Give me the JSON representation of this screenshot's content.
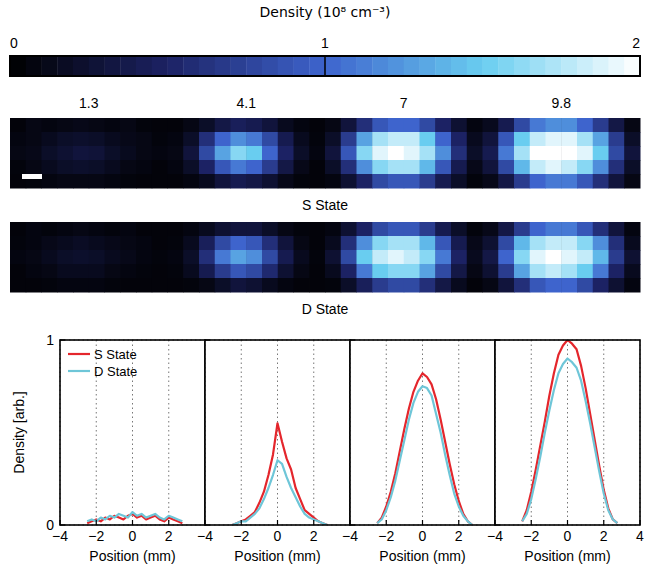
{
  "chart_data": [
    {
      "type": "heatmap",
      "colorbar": {
        "title": "Density (10⁸ cm⁻³)",
        "range": [
          0,
          2
        ],
        "ticks": [
          0,
          1,
          2
        ]
      },
      "columns": [
        "1.3",
        "4.1",
        "7",
        "9.8"
      ],
      "rows": [
        {
          "label": "S State",
          "images": [
            [
              [
                0.05,
                0.1,
                0.08,
                0.1,
                0.12,
                0.1,
                0.08,
                0.1,
                0.06,
                0.05
              ],
              [
                0.08,
                0.1,
                0.15,
                0.2,
                0.22,
                0.2,
                0.15,
                0.12,
                0.1,
                0.06
              ],
              [
                0.1,
                0.12,
                0.2,
                0.25,
                0.3,
                0.28,
                0.2,
                0.15,
                0.1,
                0.08
              ],
              [
                0.06,
                0.1,
                0.15,
                0.2,
                0.22,
                0.2,
                0.15,
                0.1,
                0.08,
                0.05
              ],
              [
                0.05,
                0.06,
                0.08,
                0.1,
                0.1,
                0.1,
                0.08,
                0.06,
                0.05,
                0.05
              ]
            ],
            [
              [
                0.05,
                0.1,
                0.2,
                0.35,
                0.45,
                0.4,
                0.3,
                0.15,
                0.08,
                0.05
              ],
              [
                0.08,
                0.2,
                0.6,
                1.0,
                1.2,
                1.1,
                0.8,
                0.4,
                0.15,
                0.06
              ],
              [
                0.1,
                0.3,
                0.8,
                1.3,
                1.6,
                1.5,
                1.0,
                0.5,
                0.2,
                0.08
              ],
              [
                0.08,
                0.2,
                0.5,
                0.9,
                1.1,
                1.0,
                0.7,
                0.35,
                0.12,
                0.05
              ],
              [
                0.05,
                0.08,
                0.15,
                0.3,
                0.4,
                0.35,
                0.25,
                0.12,
                0.06,
                0.05
              ]
            ],
            [
              [
                0.1,
                0.3,
                0.6,
                0.9,
                1.0,
                1.0,
                0.8,
                0.5,
                0.25,
                0.08
              ],
              [
                0.2,
                0.7,
                1.3,
                1.7,
                1.8,
                1.8,
                1.5,
                1.0,
                0.5,
                0.15
              ],
              [
                0.3,
                0.9,
                1.6,
                1.9,
                2.0,
                1.9,
                1.7,
                1.2,
                0.6,
                0.2
              ],
              [
                0.2,
                0.6,
                1.2,
                1.6,
                1.7,
                1.7,
                1.4,
                0.9,
                0.4,
                0.12
              ],
              [
                0.08,
                0.25,
                0.5,
                0.8,
                0.9,
                0.9,
                0.7,
                0.4,
                0.2,
                0.06
              ]
            ],
            [
              [
                0.15,
                0.4,
                0.8,
                1.1,
                1.2,
                1.2,
                1.0,
                0.7,
                0.35,
                0.1
              ],
              [
                0.3,
                0.9,
                1.5,
                1.8,
                1.9,
                1.9,
                1.7,
                1.3,
                0.7,
                0.2
              ],
              [
                0.4,
                1.1,
                1.7,
                2.0,
                2.0,
                2.0,
                1.9,
                1.5,
                0.8,
                0.3
              ],
              [
                0.3,
                0.8,
                1.4,
                1.8,
                1.9,
                1.8,
                1.6,
                1.2,
                0.6,
                0.2
              ],
              [
                0.12,
                0.35,
                0.7,
                1.0,
                1.1,
                1.1,
                0.9,
                0.6,
                0.3,
                0.1
              ]
            ]
          ]
        },
        {
          "label": "D State",
          "images": [
            [
              [
                0.05,
                0.08,
                0.06,
                0.08,
                0.1,
                0.08,
                0.06,
                0.08,
                0.05,
                0.05
              ],
              [
                0.06,
                0.08,
                0.12,
                0.15,
                0.18,
                0.15,
                0.12,
                0.1,
                0.08,
                0.05
              ],
              [
                0.08,
                0.1,
                0.15,
                0.2,
                0.22,
                0.2,
                0.15,
                0.12,
                0.08,
                0.06
              ],
              [
                0.05,
                0.08,
                0.1,
                0.15,
                0.15,
                0.15,
                0.1,
                0.08,
                0.06,
                0.05
              ],
              [
                0.05,
                0.05,
                0.06,
                0.08,
                0.08,
                0.08,
                0.06,
                0.05,
                0.05,
                0.05
              ]
            ],
            [
              [
                0.05,
                0.08,
                0.15,
                0.25,
                0.3,
                0.3,
                0.2,
                0.1,
                0.06,
                0.05
              ],
              [
                0.06,
                0.15,
                0.45,
                0.8,
                1.0,
                0.9,
                0.6,
                0.3,
                0.1,
                0.05
              ],
              [
                0.08,
                0.2,
                0.6,
                1.1,
                1.3,
                1.2,
                0.8,
                0.4,
                0.15,
                0.06
              ],
              [
                0.06,
                0.15,
                0.4,
                0.7,
                0.9,
                0.8,
                0.55,
                0.25,
                0.1,
                0.05
              ],
              [
                0.05,
                0.06,
                0.1,
                0.2,
                0.3,
                0.25,
                0.15,
                0.08,
                0.05,
                0.05
              ]
            ],
            [
              [
                0.08,
                0.25,
                0.5,
                0.8,
                0.9,
                0.9,
                0.7,
                0.4,
                0.2,
                0.06
              ],
              [
                0.15,
                0.6,
                1.2,
                1.6,
                1.7,
                1.7,
                1.4,
                0.9,
                0.4,
                0.12
              ],
              [
                0.25,
                0.8,
                1.5,
                1.8,
                1.9,
                1.8,
                1.6,
                1.1,
                0.5,
                0.15
              ],
              [
                0.15,
                0.5,
                1.1,
                1.5,
                1.6,
                1.6,
                1.3,
                0.8,
                0.35,
                0.1
              ],
              [
                0.06,
                0.2,
                0.45,
                0.7,
                0.8,
                0.8,
                0.6,
                0.35,
                0.15,
                0.05
              ]
            ],
            [
              [
                0.12,
                0.35,
                0.7,
                1.0,
                1.1,
                1.1,
                0.9,
                0.6,
                0.3,
                0.08
              ],
              [
                0.25,
                0.8,
                1.4,
                1.7,
                1.8,
                1.8,
                1.6,
                1.2,
                0.6,
                0.15
              ],
              [
                0.35,
                1.0,
                1.6,
                1.9,
                2.0,
                1.9,
                1.8,
                1.4,
                0.7,
                0.25
              ],
              [
                0.25,
                0.7,
                1.3,
                1.7,
                1.8,
                1.7,
                1.5,
                1.1,
                0.5,
                0.15
              ],
              [
                0.1,
                0.3,
                0.6,
                0.9,
                1.0,
                1.0,
                0.8,
                0.5,
                0.25,
                0.08
              ]
            ]
          ]
        }
      ]
    },
    {
      "type": "line",
      "ylabel": "Density [arb.]",
      "x": [
        -2.5,
        -2.25,
        -2,
        -1.75,
        -1.5,
        -1.25,
        -1,
        -0.75,
        -0.5,
        -0.25,
        0,
        0.25,
        0.5,
        0.75,
        1,
        1.25,
        1.5,
        1.75,
        2,
        2.25,
        2.5,
        2.75
      ],
      "panels": [
        {
          "xlabel": "Position (mm)",
          "xlim": [
            -4,
            4
          ],
          "xticks": [
            {
              "value": -4,
              "label": "−4"
            },
            {
              "value": -2,
              "label": "−2"
            },
            0,
            2
          ],
          "ylim": [
            0,
            1
          ],
          "yticks": [
            0,
            1
          ],
          "tick_labels": true,
          "grid": true,
          "legend": "upper left",
          "series": [
            {
              "name": "S State",
              "color": "#e4262c",
              "values": [
                0.01,
                0.02,
                0.03,
                0.02,
                0.04,
                0.03,
                0.05,
                0.04,
                0.03,
                0.05,
                0.06,
                0.04,
                0.05,
                0.03,
                0.04,
                0.05,
                0.03,
                0.02,
                0.04,
                0.03,
                0.02,
                0.01
              ]
            },
            {
              "name": "D State",
              "color": "#6ec6d8",
              "values": [
                0.02,
                0.03,
                0.02,
                0.04,
                0.03,
                0.05,
                0.04,
                0.06,
                0.05,
                0.04,
                0.07,
                0.05,
                0.06,
                0.04,
                0.05,
                0.06,
                0.04,
                0.03,
                0.05,
                0.04,
                0.03,
                0.02
              ]
            }
          ]
        },
        {
          "xlabel": "Position (mm)",
          "xlim": [
            -4,
            4
          ],
          "xticks": [
            {
              "value": -4,
              "label": "−4"
            },
            {
              "value": -2,
              "label": "−2"
            },
            0,
            2
          ],
          "ylim": [
            0,
            1
          ],
          "yticks": [
            0,
            1
          ],
          "tick_labels": "x",
          "grid": true,
          "series": [
            {
              "name": "S State",
              "color": "#e4262c",
              "values": [
                0.0,
                0.01,
                0.02,
                0.03,
                0.05,
                0.07,
                0.12,
                0.18,
                0.27,
                0.38,
                0.55,
                0.45,
                0.36,
                0.3,
                0.2,
                0.14,
                0.08,
                0.06,
                0.04,
                0.02,
                0.01,
                0.0
              ]
            },
            {
              "name": "D State",
              "color": "#6ec6d8",
              "values": [
                0.0,
                0.01,
                0.02,
                0.02,
                0.04,
                0.06,
                0.09,
                0.14,
                0.2,
                0.27,
                0.35,
                0.33,
                0.26,
                0.2,
                0.15,
                0.1,
                0.06,
                0.04,
                0.03,
                0.02,
                0.01,
                0.0
              ]
            }
          ]
        },
        {
          "xlabel": "Position (mm)",
          "xlim": [
            -4,
            4
          ],
          "xticks": [
            {
              "value": -4,
              "label": "−4"
            },
            {
              "value": -2,
              "label": "−2"
            },
            0,
            2
          ],
          "ylim": [
            0,
            1
          ],
          "yticks": [
            0,
            1
          ],
          "tick_labels": "x",
          "grid": true,
          "series": [
            {
              "name": "S State",
              "color": "#e4262c",
              "values": [
                0.01,
                0.04,
                0.1,
                0.18,
                0.28,
                0.4,
                0.52,
                0.63,
                0.72,
                0.78,
                0.82,
                0.8,
                0.76,
                0.68,
                0.57,
                0.45,
                0.33,
                0.22,
                0.13,
                0.06,
                0.02,
                0.0
              ]
            },
            {
              "name": "D State",
              "color": "#6ec6d8",
              "values": [
                0.01,
                0.03,
                0.08,
                0.15,
                0.24,
                0.35,
                0.46,
                0.57,
                0.66,
                0.72,
                0.75,
                0.74,
                0.7,
                0.6,
                0.5,
                0.38,
                0.27,
                0.17,
                0.1,
                0.05,
                0.02,
                0.0
              ]
            }
          ]
        },
        {
          "xlabel": "Position (mm)",
          "xlim": [
            -4,
            4
          ],
          "xticks": [
            {
              "value": -4,
              "label": "−4"
            },
            {
              "value": -2,
              "label": "−2"
            },
            0,
            2,
            4
          ],
          "ylim": [
            0,
            1
          ],
          "yticks": [
            0,
            1
          ],
          "tick_labels": "x",
          "grid": true,
          "series": [
            {
              "name": "S State",
              "color": "#e4262c",
              "values": [
                0.02,
                0.08,
                0.18,
                0.3,
                0.43,
                0.56,
                0.7,
                0.82,
                0.92,
                0.97,
                1.0,
                0.98,
                0.95,
                0.86,
                0.74,
                0.6,
                0.46,
                0.32,
                0.19,
                0.09,
                0.03,
                0.01
              ]
            },
            {
              "name": "D State",
              "color": "#6ec6d8",
              "values": [
                0.02,
                0.06,
                0.14,
                0.25,
                0.37,
                0.5,
                0.62,
                0.73,
                0.82,
                0.87,
                0.9,
                0.88,
                0.85,
                0.78,
                0.67,
                0.55,
                0.42,
                0.29,
                0.17,
                0.08,
                0.03,
                0.01
              ]
            }
          ]
        }
      ]
    }
  ]
}
